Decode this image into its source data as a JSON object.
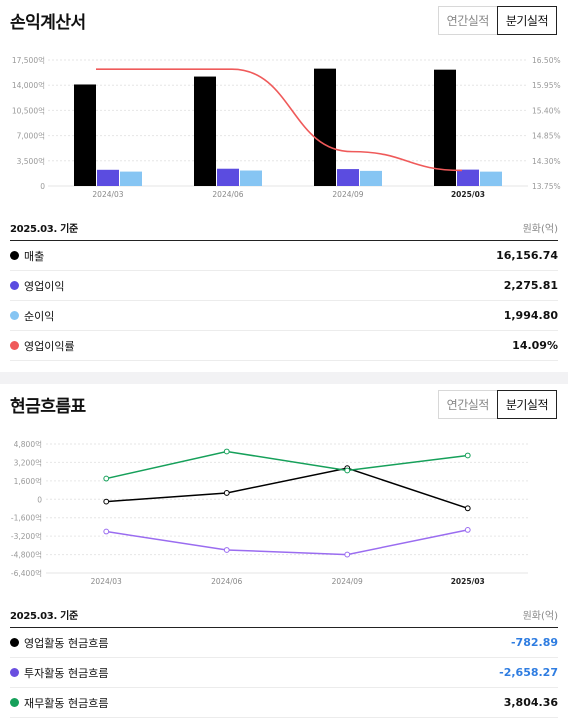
{
  "income": {
    "title": "손익계산서",
    "tabs": [
      "연간실적",
      "분기실적"
    ],
    "active_tab": 1,
    "basis": "2025.03. 기준",
    "unit": "원화(억)",
    "rows": [
      {
        "label": "매출",
        "value": "16,156.74",
        "color": "#000000"
      },
      {
        "label": "영업이익",
        "value": "2,275.81",
        "color": "#5b4ce0"
      },
      {
        "label": "순이익",
        "value": "1,994.80",
        "color": "#86c5f3"
      },
      {
        "label": "영업이익률",
        "value": "14.09%",
        "color": "#ef5a5a"
      }
    ]
  },
  "cashflow": {
    "title": "현금흐름표",
    "tabs": [
      "연간실적",
      "분기실적"
    ],
    "active_tab": 1,
    "basis": "2025.03. 기준",
    "unit": "원화(억)",
    "rows": [
      {
        "label": "영업활동 현금흐름",
        "value": "-782.89",
        "color": "#000000",
        "negative": true
      },
      {
        "label": "투자활동 현금흐름",
        "value": "-2,658.27",
        "color": "#6a4fe0",
        "negative": true
      },
      {
        "label": "재무활동 현금흐름",
        "value": "3,804.36",
        "color": "#16a05a",
        "negative": false
      }
    ]
  },
  "chart_data": [
    {
      "type": "bar",
      "categories": [
        "2024/03",
        "2024/06",
        "2024/09",
        "2025/03"
      ],
      "series": [
        {
          "name": "매출",
          "values": [
            14100,
            15200,
            16300,
            16156.74
          ],
          "color": "#000000"
        },
        {
          "name": "영업이익",
          "values": [
            2250,
            2400,
            2350,
            2275.81
          ],
          "color": "#5b4ce0"
        },
        {
          "name": "순이익",
          "values": [
            2000,
            2150,
            2100,
            1994.8
          ],
          "color": "#86c5f3"
        }
      ],
      "line_series": {
        "name": "영업이익률",
        "values": [
          16.3,
          16.3,
          14.5,
          14.09
        ],
        "color": "#ef5a5a",
        "unit": "%"
      },
      "y_ticks": [
        "0",
        "3,500억",
        "7,000억",
        "10,500억",
        "14,000억",
        "17,500억"
      ],
      "y_tick_values": [
        0,
        3500,
        7000,
        10500,
        14000,
        17500
      ],
      "ylim": [
        0,
        17500
      ],
      "y2_ticks": [
        "13.75%",
        "14.30%",
        "14.85%",
        "15.40%",
        "15.95%",
        "16.50%"
      ],
      "y2_tick_values": [
        13.75,
        14.3,
        14.85,
        15.4,
        15.95,
        16.5
      ],
      "y2lim": [
        13.75,
        16.5
      ],
      "grid": true
    },
    {
      "type": "line",
      "categories": [
        "2024/03",
        "2024/06",
        "2024/09",
        "2025/03"
      ],
      "series": [
        {
          "name": "영업활동 현금흐름",
          "values": [
            -200,
            550,
            2700,
            -782.89
          ],
          "color": "#000000"
        },
        {
          "name": "투자활동 현금흐름",
          "values": [
            -2800,
            -4400,
            -4800,
            -2658.27
          ],
          "color": "#9a6cf0"
        },
        {
          "name": "재무활동 현금흐름",
          "values": [
            1800,
            4150,
            2500,
            3804.36
          ],
          "color": "#16a05a"
        }
      ],
      "y_ticks": [
        "-6,400억",
        "-4,800억",
        "-3,200억",
        "-1,600억",
        "0",
        "1,600억",
        "3,200억",
        "4,800억"
      ],
      "y_tick_values": [
        -6400,
        -4800,
        -3200,
        -1600,
        0,
        1600,
        3200,
        4800
      ],
      "ylim": [
        -6400,
        4800
      ],
      "grid": true
    }
  ]
}
